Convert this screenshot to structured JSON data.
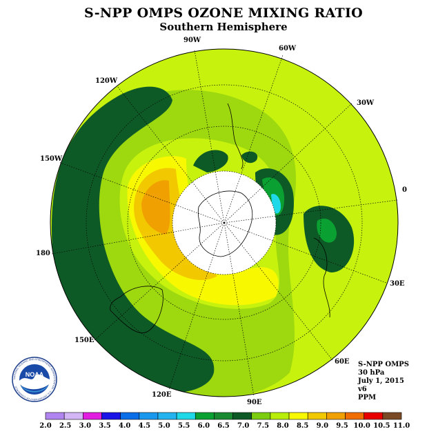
{
  "title": "S-NPP OMPS OZONE MIXING RATIO",
  "subtitle": "Southern Hemisphere",
  "longitude_labels": {
    "w90": "90W",
    "w60": "60W",
    "w120": "120W",
    "w30": "30W",
    "w150": "150W",
    "zero": "0",
    "w180": "180",
    "e30": "30E",
    "e150": "150E",
    "e60": "60E",
    "e120": "120E",
    "e90": "90E"
  },
  "info": {
    "instrument": "S-NPP OMPS",
    "level": "30 hPa",
    "date": "July 1, 2015",
    "version": "v6",
    "units": "PPM"
  },
  "logo": {
    "text": "NOAA",
    "ring_text": "NATIONAL OCEANIC AND ATMOSPHERIC ADMINISTRATION · U.S. DEPARTMENT OF COMMERCE"
  },
  "colorbar": {
    "labels": [
      "2.0",
      "2.5",
      "3.0",
      "3.5",
      "4.0",
      "4.5",
      "5.0",
      "5.5",
      "6.0",
      "6.5",
      "7.0",
      "7.5",
      "8.0",
      "8.5",
      "9.0",
      "9.5",
      "10.0",
      "10.5",
      "11.0"
    ],
    "colors": [
      "#b085f0",
      "#d4b6f6",
      "#e21ee0",
      "#1a14e6",
      "#0a6ee8",
      "#1a98ee",
      "#23b4f0",
      "#1fd8e8",
      "#0aa032",
      "#1a8a32",
      "#0e5a26",
      "#7ccc10",
      "#b8ee0a",
      "#f8f800",
      "#f2c800",
      "#f0a000",
      "#f06e00",
      "#e80000",
      "#7a4a26"
    ]
  }
}
